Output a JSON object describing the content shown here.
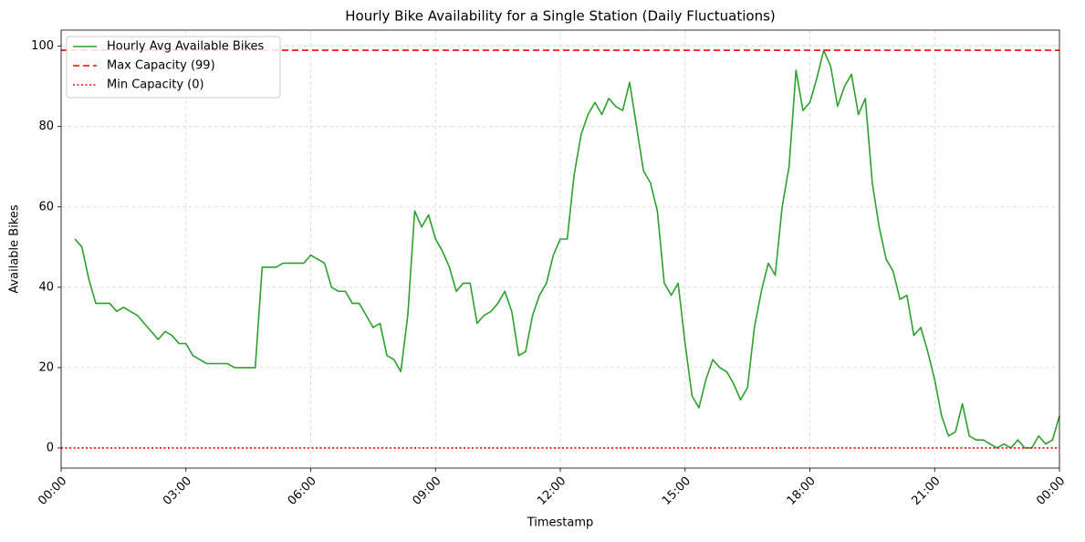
{
  "chart_data": {
    "type": "line",
    "title": "Hourly Bike Availability for a Single Station (Daily Fluctuations)",
    "x_label": "Timestamp",
    "y_label": "Available Bikes",
    "xlim": [
      0,
      1440
    ],
    "ylim": [
      -5,
      104
    ],
    "xticks": [
      {
        "value": 0,
        "label": "00:00"
      },
      {
        "value": 180,
        "label": "03:00"
      },
      {
        "value": 360,
        "label": "06:00"
      },
      {
        "value": 540,
        "label": "09:00"
      },
      {
        "value": 720,
        "label": "12:00"
      },
      {
        "value": 900,
        "label": "15:00"
      },
      {
        "value": 1080,
        "label": "18:00"
      },
      {
        "value": 1260,
        "label": "21:00"
      },
      {
        "value": 1440,
        "label": "00:00"
      }
    ],
    "yticks": [
      0,
      20,
      40,
      60,
      80,
      100
    ],
    "grid": true,
    "legend": "upper left",
    "series": [
      {
        "name": "Hourly Avg Available Bikes",
        "color": "#2ca02c",
        "x": [
          20,
          30,
          40,
          50,
          60,
          70,
          80,
          90,
          100,
          110,
          120,
          130,
          140,
          150,
          160,
          170,
          180,
          190,
          200,
          210,
          220,
          230,
          240,
          250,
          260,
          270,
          280,
          290,
          300,
          310,
          320,
          330,
          340,
          350,
          360,
          370,
          380,
          390,
          400,
          410,
          420,
          430,
          440,
          450,
          460,
          470,
          480,
          490,
          500,
          510,
          520,
          530,
          540,
          550,
          560,
          570,
          580,
          590,
          600,
          610,
          620,
          630,
          640,
          650,
          660,
          670,
          680,
          690,
          700,
          710,
          720,
          730,
          740,
          750,
          760,
          770,
          780,
          790,
          800,
          810,
          820,
          830,
          840,
          850,
          860,
          870,
          880,
          890,
          900,
          910,
          920,
          930,
          940,
          950,
          960,
          970,
          980,
          990,
          1000,
          1010,
          1020,
          1030,
          1040,
          1050,
          1060,
          1070,
          1080,
          1090,
          1100,
          1110,
          1120,
          1130,
          1140,
          1150,
          1160,
          1170,
          1180,
          1190,
          1200,
          1210,
          1220,
          1230,
          1240,
          1250,
          1260,
          1270,
          1280,
          1290,
          1300,
          1310,
          1320,
          1330,
          1340,
          1350,
          1360,
          1370,
          1380,
          1390,
          1400,
          1410,
          1420,
          1430,
          1440
        ],
        "values": [
          52,
          50,
          42,
          36,
          36,
          36,
          34,
          35,
          34,
          33,
          31,
          29,
          27,
          29,
          28,
          26,
          26,
          23,
          22,
          21,
          21,
          21,
          21,
          20,
          20,
          20,
          20,
          45,
          45,
          45,
          46,
          46,
          46,
          46,
          48,
          47,
          46,
          40,
          39,
          39,
          36,
          36,
          33,
          30,
          31,
          23,
          22,
          19,
          33,
          59,
          55,
          58,
          52,
          49,
          45,
          39,
          41,
          41,
          31,
          33,
          34,
          36,
          39,
          34,
          23,
          24,
          33,
          38,
          41,
          48,
          52,
          52,
          68,
          78,
          83,
          86,
          83,
          87,
          85,
          84,
          91,
          80,
          69,
          66,
          59,
          41,
          38,
          41,
          26,
          13,
          10,
          17,
          22,
          20,
          19,
          16,
          12,
          15,
          30,
          39,
          46,
          43,
          60,
          70,
          94,
          84,
          86,
          92,
          99,
          95,
          85,
          90,
          93,
          83,
          87,
          66,
          55,
          47,
          44,
          37,
          38,
          28,
          30,
          24,
          17,
          8,
          3,
          4,
          11,
          3,
          2,
          2,
          1,
          0,
          1,
          0,
          2,
          0,
          0,
          3,
          1,
          2,
          8
        ]
      }
    ],
    "hlines": [
      {
        "name": "Max Capacity (99)",
        "value": 99,
        "color": "#ff0000",
        "style": "dashed"
      },
      {
        "name": "Min Capacity (0)",
        "value": 0,
        "color": "#ff0000",
        "style": "dotted"
      }
    ]
  }
}
